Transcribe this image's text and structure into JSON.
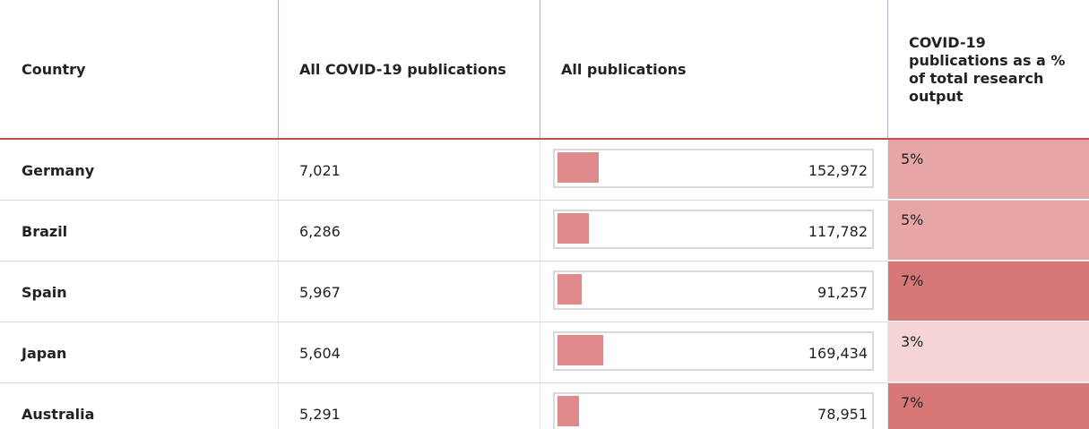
{
  "table": {
    "header": [
      "Country",
      "All COVID-19 publications",
      "All publications",
      "COVID-19 publications as a % of total research output"
    ],
    "rows": [
      [
        "Germany",
        "7,021",
        "152,972",
        "5%"
      ],
      [
        "Brazil",
        "6,286",
        "117,782",
        "5%"
      ],
      [
        "Spain",
        "5,967",
        "91,257",
        "7%"
      ],
      [
        "Japan",
        "5,604",
        "169,434",
        "3%"
      ],
      [
        "Australia",
        "5,291",
        "78,951",
        "7%"
      ]
    ]
  }
}
